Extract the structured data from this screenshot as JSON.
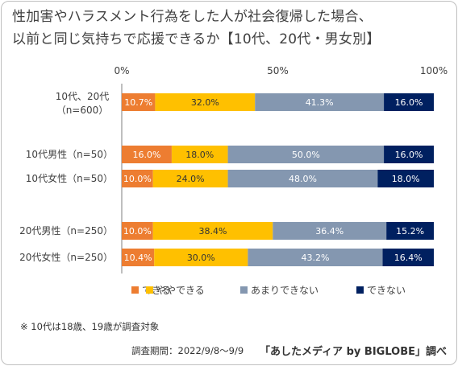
{
  "title_line1": "性加害やハラスメント行為をした人が社会復帰した場合、",
  "title_line2": "以前と同じ気持ちで応援できるか【10代、20代・男女別】",
  "footnote": "※ 10代は18歳、19歳が調査対象",
  "survey_period": "調査期間：2022/9/8〜9/9",
  "credit": "「あしたメディア by BIGLOBE」調べ",
  "chart_data": {
    "type": "bar",
    "orientation": "horizontal",
    "stacked": "percent",
    "x_ticks": [
      "0%",
      "50%",
      "100%"
    ],
    "xlim": [
      0,
      100
    ],
    "legend_position": "bottom",
    "categories": [
      {
        "line1": "10代、20代",
        "line2": "（n=600）"
      },
      {
        "line1": "10代男性（n=50）",
        "line2": ""
      },
      {
        "line1": "10代女性（n=50）",
        "line2": ""
      },
      {
        "line1": "20代男性（n=250）",
        "line2": ""
      },
      {
        "line1": "20代女性（n=250）",
        "line2": ""
      }
    ],
    "series": [
      {
        "name": "できる",
        "color": "#ed7d31",
        "text_color": "#ffffff",
        "values": [
          10.7,
          16.0,
          10.0,
          10.0,
          10.4
        ],
        "labels": [
          "10.7%",
          "16.0%",
          "10.0%",
          "10.0%",
          "10.4%"
        ]
      },
      {
        "name": "ややできる",
        "color": "#ffc000",
        "text_color": "#333333",
        "values": [
          32.0,
          18.0,
          24.0,
          38.4,
          30.0
        ],
        "labels": [
          "32.0%",
          "18.0%",
          "24.0%",
          "38.4%",
          "30.0%"
        ]
      },
      {
        "name": "あまりできない",
        "color": "#8497b0",
        "text_color": "#ffffff",
        "values": [
          41.3,
          50.0,
          48.0,
          36.4,
          43.2
        ],
        "labels": [
          "41.3%",
          "50.0%",
          "48.0%",
          "36.4%",
          "43.2%"
        ]
      },
      {
        "name": "できない",
        "color": "#002060",
        "text_color": "#ffffff",
        "values": [
          16.0,
          16.0,
          18.0,
          15.2,
          16.4
        ],
        "labels": [
          "16.0%",
          "16.0%",
          "18.0%",
          "15.2%",
          "16.4%"
        ]
      }
    ]
  }
}
